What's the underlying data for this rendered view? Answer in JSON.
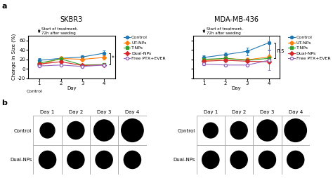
{
  "chart_data": [
    {
      "type": "line",
      "title": "SKBR3",
      "xlabel": "Day",
      "ylabel": "Change in Size (%)",
      "x": [
        1,
        2,
        3,
        4
      ],
      "xlim": [
        0.5,
        4.5
      ],
      "xticks": [
        1,
        2,
        3,
        4
      ],
      "ylim": [
        -20,
        70
      ],
      "yticks": [
        -20,
        0,
        20,
        40,
        60
      ],
      "legend": "right",
      "series": [
        {
          "name": "Control",
          "marker": "circle",
          "values": [
            18,
            22,
            25,
            33
          ],
          "yerr": [
            4,
            4,
            3,
            5
          ]
        },
        {
          "name": "UT-NPs",
          "marker": "diamond",
          "values": [
            8,
            22,
            20,
            24
          ],
          "yerr": [
            2,
            3,
            3,
            4
          ]
        },
        {
          "name": "T-NPs",
          "marker": "square",
          "values": [
            12,
            21,
            8,
            9
          ],
          "yerr": [
            2,
            3,
            2,
            2
          ]
        },
        {
          "name": "Dual-NPs",
          "marker": "diamond",
          "values": [
            10,
            15,
            7,
            8
          ],
          "yerr": [
            2,
            3,
            2,
            2
          ]
        },
        {
          "name": "Free PTX+EVER",
          "marker": "open-circle",
          "values": [
            6,
            8,
            5,
            8
          ],
          "yerr": [
            1,
            2,
            1,
            2
          ]
        }
      ],
      "annotations": [
        {
          "text": "a",
          "kind": "panel"
        },
        {
          "text": "Start of treatment,\n72h after seeding",
          "kind": "arrow",
          "x": 1
        },
        {
          "text": "*",
          "kind": "bracket",
          "x": 4,
          "between": [
            "Control",
            "T-NPs"
          ]
        },
        {
          "text": "Control",
          "kind": "below"
        }
      ]
    },
    {
      "type": "line",
      "title": "MDA-MB-436",
      "xlabel": "Day",
      "x": [
        1,
        2,
        3,
        4
      ],
      "xlim": [
        0.5,
        4.5
      ],
      "xticks": [
        1,
        2,
        3,
        4
      ],
      "ylim": [
        -20,
        70
      ],
      "yticks": [
        -20,
        0,
        20,
        40,
        60
      ],
      "legend": "right",
      "tick_labels": "x",
      "series": [
        {
          "name": "Control",
          "marker": "circle",
          "values": [
            24,
            30,
            37,
            55
          ],
          "yerr": [
            4,
            5,
            8,
            15
          ]
        },
        {
          "name": "UT-NPs",
          "marker": "diamond",
          "values": [
            17,
            22,
            19,
            25
          ],
          "yerr": [
            3,
            4,
            3,
            5
          ]
        },
        {
          "name": "T-NPs",
          "marker": "square",
          "values": [
            20,
            22,
            18,
            22
          ],
          "yerr": [
            3,
            4,
            3,
            4
          ]
        },
        {
          "name": "Dual-NPs",
          "marker": "diamond",
          "values": [
            16,
            18,
            16,
            15
          ],
          "yerr": [
            3,
            3,
            3,
            3
          ]
        },
        {
          "name": "Free PTX+EVER",
          "marker": "open-circle",
          "values": [
            10,
            8,
            8,
            18
          ],
          "yerr": [
            2,
            2,
            2,
            20
          ]
        }
      ],
      "annotations": [
        {
          "text": "Start of treatment,\n72h after seeding",
          "kind": "arrow",
          "x": 1
        },
        {
          "text": "n.s",
          "kind": "bracket",
          "x": 4,
          "between": [
            "Control",
            "T-NPs"
          ]
        }
      ]
    },
    {
      "type": "spheroids",
      "categories": [
        "Day 1",
        "Day 2",
        "Day 3",
        "Day 4"
      ],
      "series": [
        {
          "name": "Control",
          "sizes": [
            0.26,
            0.3,
            0.36,
            0.39
          ]
        },
        {
          "name": "Dual-NPs",
          "sizes": [
            0.3,
            0.3,
            0.3,
            0.3
          ]
        }
      ],
      "annotations": [
        {
          "text": "b",
          "kind": "panel"
        }
      ]
    },
    {
      "type": "spheroids",
      "categories": [
        "Day 1",
        "Day 2",
        "Day 3",
        "Day 4"
      ],
      "series": [
        {
          "name": "Control",
          "sizes": [
            0.26,
            0.3,
            0.36,
            0.39
          ]
        },
        {
          "name": "Dual-NPs",
          "sizes": [
            0.3,
            0.3,
            0.3,
            0.3
          ]
        }
      ]
    }
  ]
}
